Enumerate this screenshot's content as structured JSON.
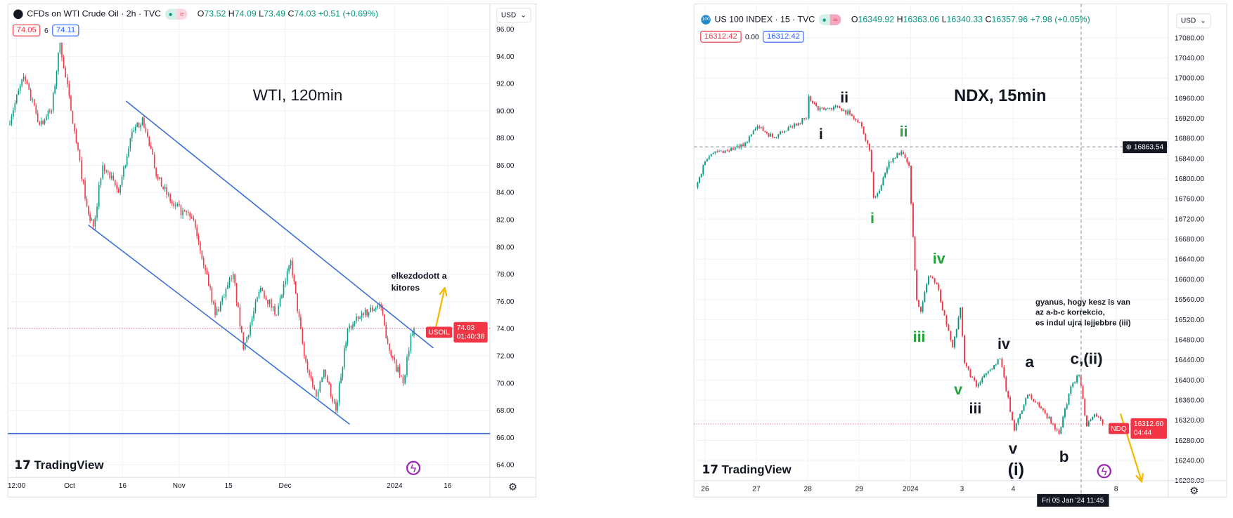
{
  "panels": [
    {
      "title": "CFDs on WTI Crude Oil · 2h · TVC",
      "open": "73.52",
      "high": "74.09",
      "low": "73.49",
      "close": "74.03",
      "change": "+0.51 (+0.69%)",
      "bid": "74.05",
      "spread": "6",
      "ask": "74.11",
      "currency": "USD",
      "price_tag_symbol": "USOIL",
      "price_tag_value": "74.03",
      "price_tag_countdown": "01:40:38",
      "logo": "TradingView",
      "symbol_icon": "oil-drop-icon"
    },
    {
      "title": "US 100 INDEX · 15 · TVC",
      "symbol_badge": "100",
      "open": "16349.92",
      "high": "16363.06",
      "low": "16340.33",
      "close": "16357.96",
      "change": "+7.98 (+0.05%)",
      "bid": "16312.42",
      "spread": "0.00",
      "ask": "16312.42",
      "currency": "USD",
      "price_tag_symbol": "NDQ",
      "price_tag_value": "16312.60",
      "price_tag_countdown": "04:44",
      "crosshair_price": "16863.54",
      "crosshair_time": "Fri 05 Jan '24   11:45",
      "logo": "TradingView"
    }
  ],
  "annotations": {
    "wti_title": "WTI, 120min",
    "wti_note_1": "elkezdodott a",
    "wti_note_2": "kitores",
    "ndx_title": "NDX, 15min",
    "ndx_note_1": "gyanus, hogy kesz is van",
    "ndx_note_2": "az a-b-c korrekcio,",
    "ndx_note_3": "es indul ujra lejjebbre (iii)",
    "waves": [
      "i",
      "ii",
      "ii",
      "i",
      "iv",
      "iii",
      "iv",
      "a",
      "c,(ii)",
      "v",
      "iii",
      "v",
      "(i)",
      "b"
    ]
  },
  "colors": {
    "up": "#089981",
    "down": "#f23645",
    "trendline": "#3a6fd8",
    "arrow": "#f5b800",
    "wave_green": "#22a33a"
  },
  "chart_data": [
    {
      "type": "candlestick",
      "title": "CFDs on WTI Crude Oil · 2h · TVC",
      "x_unit": "days from Oct 1 2023",
      "ylabel": "USD",
      "y_ticks": [
        "96.00",
        "94.00",
        "92.00",
        "90.00",
        "88.00",
        "86.00",
        "84.00",
        "82.00",
        "80.00",
        "78.00",
        "76.00",
        "74.00",
        "72.00",
        "70.00",
        "68.00",
        "66.00",
        "64.00"
      ],
      "x_ticks": [
        {
          "label": "12:00",
          "x": -15
        },
        {
          "label": "Oct",
          "x": 0
        },
        {
          "label": "16",
          "x": 15
        },
        {
          "label": "Nov",
          "x": 31
        },
        {
          "label": "15",
          "x": 45
        },
        {
          "label": "Dec",
          "x": 61
        },
        {
          "label": "2024",
          "x": 92
        },
        {
          "label": "16",
          "x": 107
        }
      ],
      "ylim": [
        63,
        97
      ],
      "close_path": [
        [
          -17.4,
          89
        ],
        [
          -13,
          92.5
        ],
        [
          -8.5,
          89
        ],
        [
          -5.1,
          90
        ],
        [
          -2.7,
          95
        ],
        [
          0.4,
          90
        ],
        [
          4.9,
          83
        ],
        [
          6.7,
          81.5
        ],
        [
          9.4,
          86
        ],
        [
          13.9,
          84
        ],
        [
          17.2,
          88
        ],
        [
          20.6,
          89.5
        ],
        [
          25,
          85
        ],
        [
          29.5,
          83
        ],
        [
          35.1,
          82
        ],
        [
          38.9,
          78
        ],
        [
          41.2,
          75
        ],
        [
          46.3,
          78
        ],
        [
          49.2,
          72.5
        ],
        [
          54.1,
          77
        ],
        [
          58.6,
          75
        ],
        [
          62.6,
          79
        ],
        [
          66.4,
          72
        ],
        [
          69.8,
          69
        ],
        [
          72,
          71
        ],
        [
          75.4,
          68
        ],
        [
          78.7,
          74
        ],
        [
          83.2,
          75
        ],
        [
          87.7,
          75.8
        ],
        [
          91,
          72
        ],
        [
          94.4,
          70
        ],
        [
          96.6,
          73.5
        ],
        [
          97.5,
          74.03
        ]
      ],
      "last_price": 74.03,
      "channel_upper": [
        [
          16.1,
          90.7
        ],
        [
          102.9,
          72.6
        ]
      ],
      "channel_lower": [
        [
          5.4,
          81.6
        ],
        [
          79.2,
          67.0
        ]
      ],
      "support": 66.3,
      "arrow": [
        [
          103.4,
          73.8
        ],
        [
          106.2,
          77.0
        ]
      ]
    },
    {
      "type": "candlestick",
      "title": "US 100 INDEX · 15 · TVC",
      "x_unit": "trading days from Dec 26 2023",
      "ylabel": "USD",
      "y_ticks": [
        "17080.00",
        "17040.00",
        "17000.00",
        "16960.00",
        "16920.00",
        "16880.00",
        "16840.00",
        "16800.00",
        "16760.00",
        "16720.00",
        "16680.00",
        "16640.00",
        "16600.00",
        "16560.00",
        "16520.00",
        "16480.00",
        "16440.00",
        "16400.00",
        "16360.00",
        "16320.00",
        "16280.00",
        "16240.00",
        "16200.00"
      ],
      "x_ticks": [
        {
          "label": "26",
          "x": 0
        },
        {
          "label": "27",
          "x": 1
        },
        {
          "label": "28",
          "x": 2
        },
        {
          "label": "29",
          "x": 3
        },
        {
          "label": "2024",
          "x": 4
        },
        {
          "label": "3",
          "x": 5
        },
        {
          "label": "4",
          "x": 6
        },
        {
          "label": "8",
          "x": 8
        }
      ],
      "ylim": [
        16180,
        17110
      ],
      "close_path": [
        [
          -0.18,
          16783
        ],
        [
          0,
          16834
        ],
        [
          0.12,
          16849
        ],
        [
          0.74,
          16865
        ],
        [
          1.02,
          16904
        ],
        [
          1.35,
          16881
        ],
        [
          1.66,
          16904
        ],
        [
          1.97,
          16920
        ],
        [
          2.02,
          16964
        ],
        [
          2.2,
          16936
        ],
        [
          2.58,
          16944
        ],
        [
          2.82,
          16928
        ],
        [
          3.05,
          16904
        ],
        [
          3.2,
          16857
        ],
        [
          3.28,
          16763
        ],
        [
          3.43,
          16787
        ],
        [
          3.58,
          16834
        ],
        [
          3.82,
          16854
        ],
        [
          3.97,
          16826
        ],
        [
          4.05,
          16685
        ],
        [
          4.12,
          16559
        ],
        [
          4.2,
          16536
        ],
        [
          4.35,
          16606
        ],
        [
          4.51,
          16591
        ],
        [
          4.66,
          16528
        ],
        [
          4.82,
          16465
        ],
        [
          4.97,
          16544
        ],
        [
          5.05,
          16434
        ],
        [
          5.28,
          16387
        ],
        [
          5.51,
          16418
        ],
        [
          5.74,
          16442
        ],
        [
          6.02,
          16300
        ],
        [
          6.28,
          16371
        ],
        [
          6.58,
          16340
        ],
        [
          6.89,
          16293
        ],
        [
          7.12,
          16387
        ],
        [
          7.28,
          16410
        ],
        [
          7.43,
          16308
        ],
        [
          7.58,
          16332
        ],
        [
          7.74,
          16312.6
        ]
      ],
      "last_price": 16312.6,
      "crosshair": [
        7.32,
        16863.54
      ],
      "arrow": [
        [
          8.09,
          16332
        ],
        [
          8.5,
          16198
        ]
      ]
    }
  ]
}
